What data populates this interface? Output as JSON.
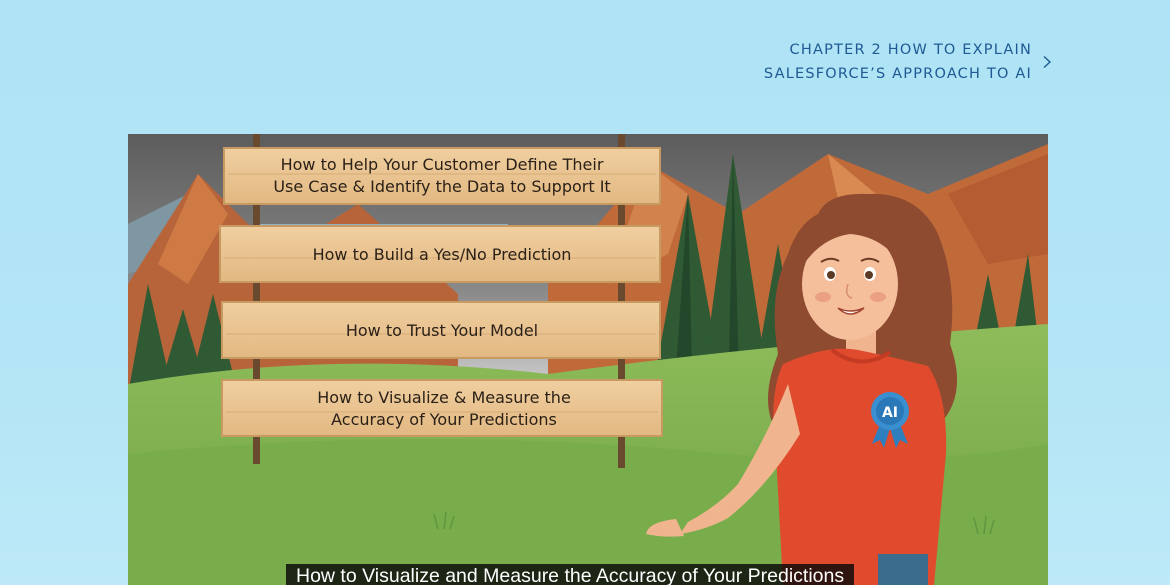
{
  "chapter_nav": {
    "line1": "CHAPTER 2 HOW TO EXPLAIN",
    "line2": "SALESFORCE’S APPROACH TO AI",
    "icon": "chevron-right-icon"
  },
  "video": {
    "signs": [
      {
        "line1": "How to Help Your Customer Define Their",
        "line2": "Use Case & Identify the Data to Support It"
      },
      {
        "line1": "How to Build a Yes/No Prediction"
      },
      {
        "line1": "How to Trust Your Model"
      },
      {
        "line1": "How to Visualize & Measure the",
        "line2": "Accuracy of Your Predictions"
      }
    ],
    "badge_text": "AI",
    "caption": "How to Visualize and Measure the Accuracy of Your Predictions"
  },
  "colors": {
    "background": "#aee3f5",
    "link": "#1f5a94",
    "sign_wood": "#e9c594",
    "shirt": "#e04b2e",
    "badge": "#3a8fd0"
  }
}
